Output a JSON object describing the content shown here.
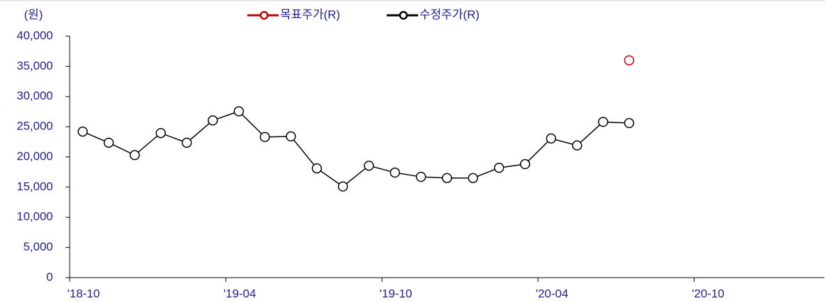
{
  "chart_data": {
    "type": "line",
    "y_unit": "(원)",
    "x": [
      0.5,
      1.5,
      2.5,
      3.5,
      4.5,
      5.5,
      6.5,
      7.5,
      8.5,
      9.5,
      10.5,
      11.5,
      12.5,
      13.5,
      14.5,
      15.5,
      16.5,
      17.5,
      18.5,
      19.5,
      20.5,
      21.5
    ],
    "series": [
      {
        "name": "목표주가(R)",
        "color": "#c00000",
        "values": [
          null,
          null,
          null,
          null,
          null,
          null,
          null,
          null,
          null,
          null,
          null,
          null,
          null,
          null,
          null,
          null,
          null,
          null,
          null,
          null,
          null,
          36000
        ]
      },
      {
        "name": "수정주가(R)",
        "color": "#000000",
        "values": [
          24200,
          22350,
          20300,
          23950,
          22350,
          26050,
          27550,
          23300,
          23400,
          18100,
          15100,
          18550,
          17400,
          16700,
          16500,
          16500,
          18200,
          18800,
          23050,
          21900,
          25800,
          25600
        ]
      }
    ],
    "xlim": [
      0,
      29
    ],
    "xticks": [
      {
        "value": 0,
        "label": "'18-10"
      },
      {
        "value": 6,
        "label": "'19-04"
      },
      {
        "value": 12,
        "label": "'19-10"
      },
      {
        "value": 18,
        "label": "'20-04"
      },
      {
        "value": 24,
        "label": "'20-10"
      }
    ],
    "ylim": [
      0,
      40000
    ],
    "yticks": [
      0,
      {
        "value": 5000,
        "label": "5,000"
      },
      {
        "value": 10000,
        "label": "10,000"
      },
      {
        "value": 15000,
        "label": "15,000"
      },
      {
        "value": 20000,
        "label": "20,000"
      },
      {
        "value": 25000,
        "label": "25,000"
      },
      {
        "value": 30000,
        "label": "30,000"
      },
      {
        "value": 35000,
        "label": "35,000"
      },
      {
        "value": 40000,
        "label": "40,000"
      }
    ],
    "grid": false,
    "legend": "top"
  }
}
